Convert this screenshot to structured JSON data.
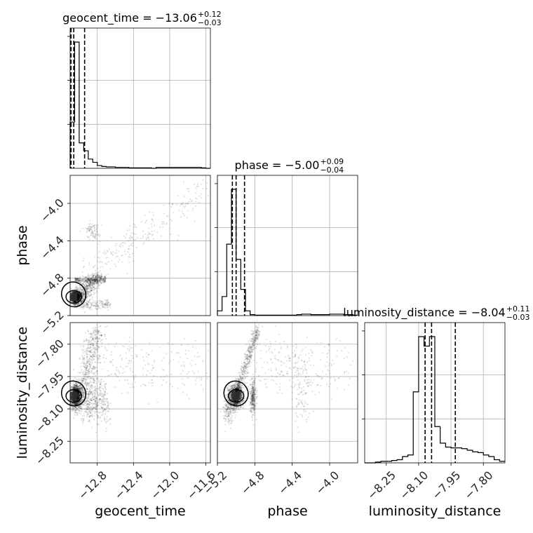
{
  "chart_data": {
    "type": "scatter",
    "subtype": "corner-plot",
    "parameters": [
      "geocent_time",
      "phase",
      "luminosity_distance"
    ],
    "axis_labels": {
      "geocent_time": "geocent_time",
      "phase": "phase",
      "luminosity_distance": "luminosity_distance"
    },
    "titles": [
      {
        "param": "geocent_time",
        "prefix": "geocent_time = −13.06",
        "plus": "+0.12",
        "minus": "−0.03"
      },
      {
        "param": "phase",
        "prefix": "phase = −5.00",
        "plus": "+0.09",
        "minus": "−0.04"
      },
      {
        "param": "luminosity_distance",
        "prefix": "luminosity_distance = −8.04",
        "plus": "+0.11",
        "minus": "−0.03"
      }
    ],
    "ranges": {
      "geocent_time": [
        -13.1,
        -11.55
      ],
      "phase": [
        -5.2,
        -3.7
      ],
      "luminosity_distance": [
        -8.35,
        -7.7
      ]
    },
    "ticks": {
      "geocent_time": [
        -12.8,
        -12.4,
        -12.0,
        -11.6
      ],
      "phase": [
        -5.2,
        -4.8,
        -4.4,
        -4.0
      ],
      "luminosity_distance": [
        -8.25,
        -8.1,
        -7.95,
        -7.8
      ]
    },
    "tick_labels": {
      "geocent_time": [
        "−12.8",
        "−12.4",
        "−12.0",
        "−11.6"
      ],
      "phase": [
        "−5.2",
        "−4.8",
        "−4.4",
        "−4.0"
      ],
      "luminosity_distance": [
        "−8.25",
        "−8.10",
        "−7.95",
        "−7.80"
      ]
    },
    "quantiles": {
      "geocent_time": [
        -13.09,
        -13.06,
        -12.94
      ],
      "phase": [
        -5.04,
        -5.0,
        -4.91
      ],
      "luminosity_distance": [
        -8.07,
        -8.04,
        -7.93
      ]
    },
    "histograms": {
      "geocent_time": {
        "edges": [
          -13.1,
          -13.05,
          -13.0,
          -12.95,
          -12.9,
          -12.85,
          -12.8,
          -12.75,
          -12.7,
          -12.65,
          -12.6,
          -12.55,
          -12.5,
          -12.45,
          -12.4,
          -12.35,
          -12.3,
          -12.25,
          -12.2,
          -12.15,
          -12.1,
          -12.05,
          -12.0,
          -11.95,
          -11.9,
          -11.85,
          -11.8,
          -11.75,
          -11.7,
          -11.65,
          -11.6,
          -11.55
        ],
        "counts": [
          100,
          273,
          55,
          38,
          20,
          13,
          6,
          4,
          3,
          3,
          2,
          2,
          2,
          1,
          1,
          1,
          1,
          1,
          0,
          2,
          2,
          2,
          2,
          2,
          2,
          2,
          2,
          2,
          2,
          1,
          0
        ]
      },
      "phase": {
        "edges": [
          -5.2,
          -5.15,
          -5.1,
          -5.05,
          -5.0,
          -4.95,
          -4.9,
          -4.85,
          -4.8,
          -4.75,
          -4.7,
          -4.65,
          -4.6,
          -4.55,
          -4.5,
          -4.45,
          -4.4,
          -4.35,
          -4.3,
          -4.25,
          -4.2,
          -4.15,
          -4.1,
          -4.05,
          -4.0,
          -3.95,
          -3.9,
          -3.85,
          -3.8,
          -3.75,
          -3.7
        ],
        "counts": [
          10,
          40,
          150,
          265,
          118,
          55,
          10,
          2,
          1,
          1,
          1,
          1,
          1,
          1,
          1,
          1,
          1,
          2,
          3,
          3,
          2,
          2,
          2,
          2,
          3,
          3,
          3,
          2,
          2,
          1
        ]
      },
      "luminosity_distance": {
        "edges": [
          -8.35,
          -8.325,
          -8.3,
          -8.275,
          -8.25,
          -8.225,
          -8.2,
          -8.175,
          -8.15,
          -8.125,
          -8.1,
          -8.075,
          -8.05,
          -8.025,
          -8.0,
          -7.975,
          -7.95,
          -7.925,
          -7.9,
          -7.875,
          -7.85,
          -7.825,
          -7.8,
          -7.775,
          -7.75,
          -7.725,
          -7.7
        ],
        "counts": [
          0,
          0,
          1,
          2,
          2,
          3,
          4,
          8,
          10,
          90,
          160,
          148,
          160,
          46,
          25,
          20,
          19,
          19,
          18,
          16,
          14,
          13,
          10,
          8,
          4,
          2
        ]
      }
    },
    "scatter_pairs": [
      {
        "x": "geocent_time",
        "y": "phase"
      },
      {
        "x": "geocent_time",
        "y": "luminosity_distance"
      },
      {
        "x": "phase",
        "y": "luminosity_distance"
      }
    ],
    "grid": true
  }
}
